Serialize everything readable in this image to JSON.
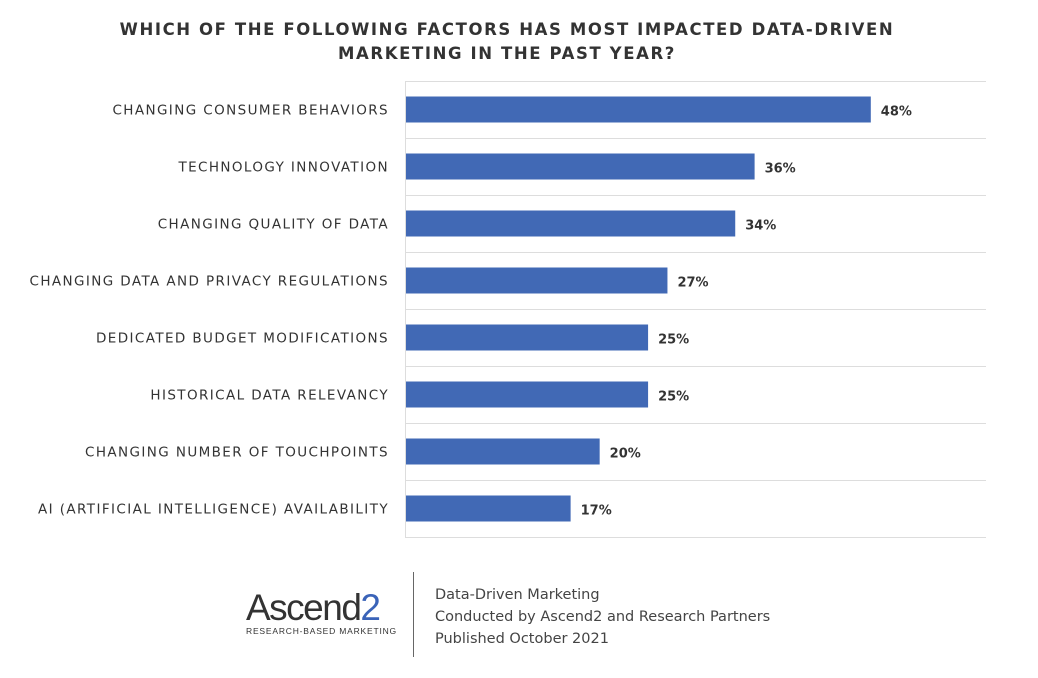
{
  "chart_data": {
    "type": "bar",
    "orientation": "horizontal",
    "title_lines": [
      "WHICH OF THE FOLLOWING FACTORS HAS MOST IMPACTED DATA-DRIVEN",
      "MARKETING IN THE PAST YEAR?"
    ],
    "categories": [
      "CHANGING CONSUMER BEHAVIORS",
      "TECHNOLOGY INNOVATION",
      "CHANGING QUALITY OF DATA",
      "CHANGING DATA AND PRIVACY REGULATIONS",
      "DEDICATED BUDGET MODIFICATIONS",
      "HISTORICAL DATA RELEVANCY",
      "CHANGING NUMBER OF TOUCHPOINTS",
      "AI (ARTIFICIAL INTELLIGENCE) AVAILABILITY"
    ],
    "values": [
      48,
      36,
      34,
      27,
      25,
      25,
      20,
      17
    ],
    "value_labels": [
      "48%",
      "36%",
      "34%",
      "27%",
      "25%",
      "25%",
      "20%",
      "17%"
    ],
    "xlim": [
      0,
      60
    ],
    "grid": true,
    "bar_color": "#4169b5"
  },
  "logo": {
    "word": "Ascend",
    "digit": "2",
    "tagline": "RESEARCH-BASED MARKETING"
  },
  "source": {
    "line1": "Data-Driven Marketing",
    "line2": "Conducted by Ascend2 and Research Partners",
    "line3": "Published October 2021"
  }
}
